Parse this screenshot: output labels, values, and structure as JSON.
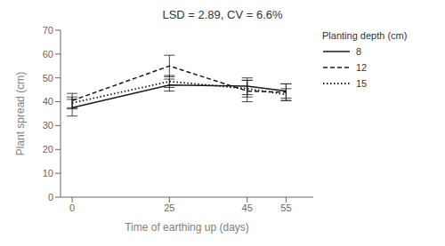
{
  "chart_data": {
    "type": "line",
    "title": "LSD = 2.89, CV = 6.6%",
    "xlabel": "Time of earthing up (days)",
    "ylabel": "Plant  spread (cm)",
    "legend_title": "Planting  depth (cm)",
    "x": [
      0,
      25,
      45,
      55
    ],
    "series": [
      {
        "name": "8",
        "color": "#1a1a1a",
        "line_style": "solid",
        "values": [
          37.5,
          47.0,
          46.5,
          44.5
        ],
        "errors": [
          3.5,
          2.5,
          3.5,
          3.0
        ]
      },
      {
        "name": "12",
        "color": "#1a1a1a",
        "line_style": "dashed",
        "values": [
          40.5,
          55.0,
          44.5,
          44.0
        ],
        "errors": [
          3.0,
          4.5,
          4.5,
          3.5
        ]
      },
      {
        "name": "15",
        "color": "#1a1a1a",
        "line_style": "dotted",
        "values": [
          39.5,
          48.5,
          45.5,
          43.0
        ],
        "errors": [
          2.5,
          2.5,
          3.5,
          2.5
        ]
      }
    ],
    "xlim": [
      -3,
      62
    ],
    "ylim": [
      0,
      70
    ],
    "xticks": [
      0,
      25,
      45,
      55
    ],
    "yticks": [
      0,
      10,
      20,
      30,
      40,
      50,
      60,
      70
    ],
    "grid": false,
    "legend": "upper right"
  }
}
